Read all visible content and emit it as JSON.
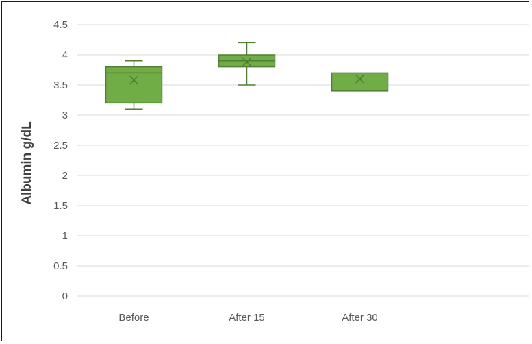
{
  "chart_data": {
    "type": "box",
    "ylabel": "Albumin g/dL",
    "xlabel": "",
    "ylim": [
      0,
      4.5
    ],
    "yticks": [
      "0",
      "0.5",
      "1",
      "1.5",
      "2",
      "2.5",
      "3",
      "3.5",
      "4",
      "4.5"
    ],
    "grid": true,
    "categories": [
      "Before",
      "After 15",
      "After 30"
    ],
    "boxes": [
      {
        "category": "Before",
        "min": 3.1,
        "q1": 3.2,
        "median": 3.7,
        "q3": 3.8,
        "max": 3.9,
        "mean": 3.58
      },
      {
        "category": "After 15",
        "min": 3.5,
        "q1": 3.8,
        "median": 3.9,
        "q3": 4.0,
        "max": 4.2,
        "mean": 3.88
      },
      {
        "category": "After 30",
        "min": 3.4,
        "q1": 3.4,
        "median": 3.7,
        "q3": 3.7,
        "max": 3.7,
        "mean": 3.6
      }
    ],
    "colors": {
      "fill": "#70AD47",
      "stroke": "#507E32",
      "grid": "#D9D9D9",
      "mean_marker": "#507E32"
    }
  }
}
